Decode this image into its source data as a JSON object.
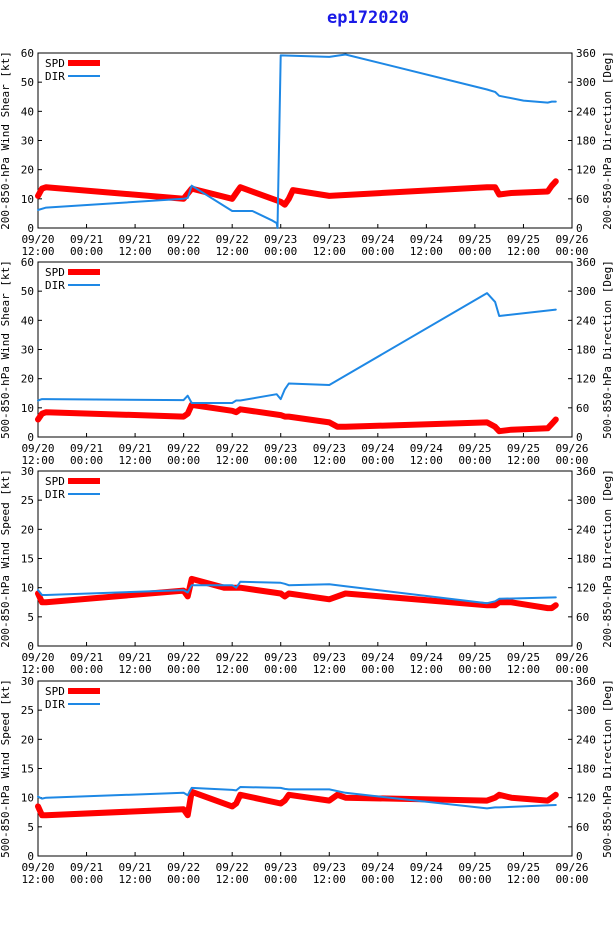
{
  "title": "ep172020",
  "colors": {
    "spd": "#ff0000",
    "dir": "#1e88e5",
    "axis": "#000000",
    "title": "#1a1ae6"
  },
  "x_ticks": [
    {
      "date": "09/20",
      "time": "12:00"
    },
    {
      "date": "09/21",
      "time": "00:00"
    },
    {
      "date": "09/21",
      "time": "12:00"
    },
    {
      "date": "09/22",
      "time": "00:00"
    },
    {
      "date": "09/22",
      "time": "12:00"
    },
    {
      "date": "09/23",
      "time": "00:00"
    },
    {
      "date": "09/23",
      "time": "12:00"
    },
    {
      "date": "09/24",
      "time": "00:00"
    },
    {
      "date": "09/24",
      "time": "12:00"
    },
    {
      "date": "09/25",
      "time": "00:00"
    },
    {
      "date": "09/25",
      "time": "12:00"
    },
    {
      "date": "09/26",
      "time": "00:00"
    }
  ],
  "chart_data": [
    {
      "type": "line",
      "ylabel": "200-850-hPa Wind Shear [kt]",
      "y2label": "200-850-hPa Direction [Deg]",
      "ylim": [
        0,
        60
      ],
      "y_ticks": [
        0,
        10,
        20,
        30,
        40,
        50,
        60
      ],
      "y2lim": [
        0,
        360
      ],
      "y2_ticks": [
        0,
        60,
        120,
        180,
        240,
        300,
        360
      ],
      "xlim": [
        0,
        132
      ],
      "legend": [
        "SPD",
        "DIR"
      ],
      "series": [
        {
          "name": "SPD",
          "axis": "left",
          "x": [
            0,
            1,
            2,
            36,
            38,
            48,
            49,
            50,
            60,
            61,
            62,
            63,
            72,
            111,
            113,
            114,
            117,
            126,
            127,
            128
          ],
          "values": [
            11,
            13.5,
            14,
            10,
            13.5,
            10,
            12,
            14,
            9,
            8,
            10,
            13,
            11,
            14,
            14,
            11.5,
            12,
            12.5,
            14.5,
            16
          ]
        },
        {
          "name": "DIR",
          "axis": "left-scaled-360",
          "x": [
            0,
            2,
            36,
            37,
            38,
            48,
            53,
            58,
            59,
            59.2,
            60,
            72,
            76,
            111,
            113,
            114,
            120,
            126,
            127,
            128
          ],
          "values": [
            37,
            42,
            60,
            62,
            87,
            35,
            35,
            15,
            10,
            0,
            355,
            352,
            357,
            285,
            280,
            272,
            262,
            258,
            260,
            260
          ]
        }
      ]
    },
    {
      "type": "line",
      "ylabel": "500-850-hPa Wind Shear [kt]",
      "y2label": "500-850-hPa Direction [Deg]",
      "ylim": [
        0,
        60
      ],
      "y_ticks": [
        0,
        10,
        20,
        30,
        40,
        50,
        60
      ],
      "y2lim": [
        0,
        360
      ],
      "y2_ticks": [
        0,
        60,
        120,
        180,
        240,
        300,
        360
      ],
      "xlim": [
        0,
        132
      ],
      "legend": [
        "SPD",
        "DIR"
      ],
      "series": [
        {
          "name": "SPD",
          "axis": "left",
          "x": [
            0,
            1,
            2,
            36,
            37,
            38,
            48,
            49,
            50,
            60,
            61,
            62,
            72,
            74,
            76,
            111,
            113,
            114,
            117,
            126,
            127,
            128
          ],
          "values": [
            6,
            8,
            8.5,
            7,
            8,
            11,
            9,
            8.5,
            9.5,
            7.5,
            7,
            7,
            5,
            3.5,
            3.5,
            5,
            3.5,
            2,
            2.5,
            3,
            4.5,
            6
          ]
        },
        {
          "name": "DIR",
          "axis": "right",
          "x": [
            0,
            1,
            2,
            36,
            37,
            38,
            48,
            49,
            50,
            59,
            60,
            61,
            62,
            72,
            111,
            113,
            114,
            128
          ],
          "values": [
            75,
            78,
            78,
            76,
            85,
            70,
            70,
            75,
            75,
            88,
            78,
            98,
            110,
            107,
            296,
            278,
            249,
            262
          ]
        }
      ]
    },
    {
      "type": "line",
      "ylabel": "200-850-hPa Wind Speed [kt]",
      "y2label": "200-850-hPa Direction [Deg]",
      "ylim": [
        0,
        30
      ],
      "y_ticks": [
        0,
        5,
        10,
        15,
        20,
        25,
        30
      ],
      "y2lim": [
        0,
        360
      ],
      "y2_ticks": [
        0,
        60,
        120,
        180,
        240,
        300,
        360
      ],
      "xlim": [
        0,
        132
      ],
      "legend": [
        "SPD",
        "DIR"
      ],
      "series": [
        {
          "name": "SPD",
          "axis": "left",
          "x": [
            0,
            1,
            2,
            36,
            37,
            38,
            46,
            48,
            49,
            50,
            60,
            61,
            62,
            72,
            76,
            111,
            113,
            114,
            117,
            126,
            127,
            128
          ],
          "values": [
            9,
            7.5,
            7.5,
            9.5,
            8.5,
            11.5,
            10,
            10,
            10,
            10,
            9,
            8.5,
            9,
            8,
            9,
            7,
            7,
            7.5,
            7.5,
            6.5,
            6.5,
            7
          ]
        },
        {
          "name": "DIR",
          "axis": "right",
          "x": [
            0,
            1,
            2,
            36,
            37,
            38,
            48,
            49,
            50,
            60,
            61,
            62,
            72,
            76,
            111,
            113,
            114,
            128
          ],
          "values": [
            115,
            105,
            105,
            115,
            110,
            125,
            125,
            120,
            132,
            130,
            128,
            125,
            127,
            123,
            88,
            92,
            97,
            100
          ]
        }
      ]
    },
    {
      "type": "line",
      "ylabel": "500-850-hPa Wind Speed [kt]",
      "y2label": "500-850-hPa Direction [Deg]",
      "ylim": [
        0,
        30
      ],
      "y_ticks": [
        0,
        5,
        10,
        15,
        20,
        25,
        30
      ],
      "y2lim": [
        0,
        360
      ],
      "y2_ticks": [
        0,
        60,
        120,
        180,
        240,
        300,
        360
      ],
      "xlim": [
        0,
        132
      ],
      "legend": [
        "SPD",
        "DIR"
      ],
      "series": [
        {
          "name": "SPD",
          "axis": "left",
          "x": [
            0,
            1,
            2,
            36,
            37,
            38,
            48,
            49,
            50,
            60,
            61,
            62,
            72,
            74,
            76,
            111,
            113,
            114,
            117,
            126,
            127,
            128
          ],
          "values": [
            8.5,
            7,
            7,
            8,
            7,
            11,
            8.5,
            9,
            10.5,
            9,
            9.5,
            10.5,
            9.5,
            10.5,
            10,
            9.5,
            10,
            10.5,
            10,
            9.5,
            10,
            10.5
          ]
        },
        {
          "name": "DIR",
          "axis": "right",
          "x": [
            0,
            1,
            2,
            36,
            37,
            38,
            48,
            49,
            50,
            60,
            61,
            62,
            72,
            76,
            111,
            113,
            114,
            128
          ],
          "values": [
            122,
            118,
            120,
            130,
            125,
            140,
            136,
            135,
            142,
            140,
            138,
            137,
            137,
            130,
            98,
            100,
            100,
            105
          ]
        }
      ]
    }
  ]
}
